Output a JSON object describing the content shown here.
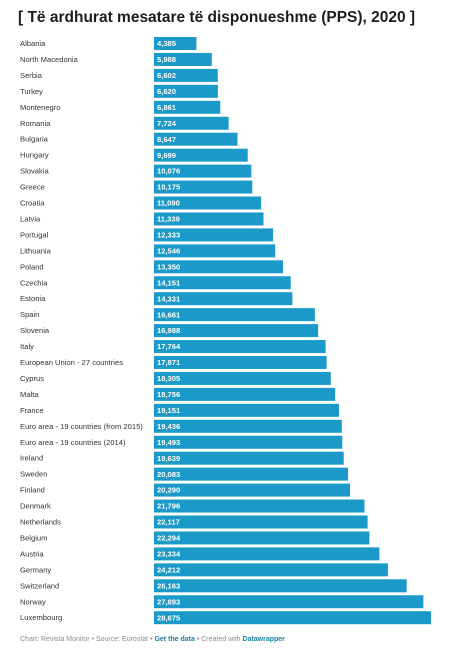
{
  "chart_data": {
    "type": "bar",
    "title": "[ Të ardhurat mesatare të disponueshme (PPS), 2020 ]",
    "categories": [
      "Albania",
      "North Macedonia",
      "Serbia",
      "Turkey",
      "Montenegro",
      "Romania",
      "Bulgaria",
      "Hungary",
      "Slovakia",
      "Greece",
      "Croatia",
      "Latvia",
      "Portugal",
      "Lithuania",
      "Poland",
      "Czechia",
      "Estonia",
      "Spain",
      "Slovenia",
      "Italy",
      "European Union - 27 countries",
      "Cyprus",
      "Malta",
      "France",
      "Euro area - 19 countries (from 2015)",
      "Euro area - 19 countries (2014)",
      "Ireland",
      "Sweden",
      "Finland",
      "Denmark",
      "Netherlands",
      "Belgium",
      "Austria",
      "Germany",
      "Switzerland",
      "Norway",
      "Luxembourg"
    ],
    "values": [
      4385,
      5988,
      6602,
      6620,
      6861,
      7724,
      8647,
      9699,
      10076,
      10175,
      11090,
      11339,
      12333,
      12546,
      13350,
      14151,
      14331,
      16661,
      16988,
      17764,
      17871,
      18305,
      18756,
      19151,
      19436,
      19493,
      19639,
      20083,
      20290,
      21796,
      22117,
      22294,
      23334,
      24212,
      26163,
      27893,
      28675
    ],
    "value_labels": [
      "4,385",
      "5,988",
      "6,602",
      "6,620",
      "6,861",
      "7,724",
      "8,647",
      "9,699",
      "10,076",
      "10,175",
      "11,090",
      "11,339",
      "12,333",
      "12,546",
      "13,350",
      "14,151",
      "14,331",
      "16,661",
      "16,988",
      "17,764",
      "17,871",
      "18,305",
      "18,756",
      "19,151",
      "19,436",
      "19,493",
      "19,639",
      "20,083",
      "20,290",
      "21,796",
      "22,117",
      "22,294",
      "23,334",
      "24,212",
      "26,163",
      "27,893",
      "28,675"
    ],
    "xlim": [
      0,
      28675
    ],
    "grid": false,
    "bar_color": "#1b9ac9",
    "label_color": "#ffffff"
  },
  "footer": {
    "prefix": "Chart: Revista Monitor • Source: Eurostat • ",
    "get_data": "Get the data",
    "middle": " • Created with ",
    "datawrapper": "Datawrapper"
  }
}
